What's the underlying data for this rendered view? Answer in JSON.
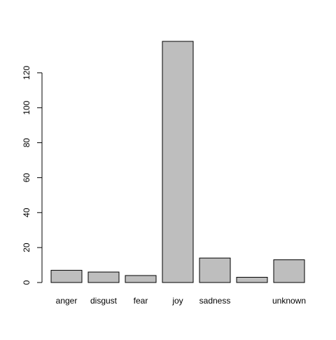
{
  "chart_data": {
    "type": "bar",
    "categories": [
      "anger",
      "disgust",
      "fear",
      "joy",
      "sadness",
      "",
      "unknown"
    ],
    "values": [
      7,
      6,
      4,
      138,
      14,
      3,
      13
    ],
    "title": "",
    "xlabel": "",
    "ylabel": "",
    "ylim": [
      0,
      138
    ],
    "yticks": [
      "0",
      "20",
      "40",
      "60",
      "80",
      "100",
      "120"
    ],
    "grid": false,
    "legend": "none",
    "colors": {
      "bar_fill": "#bebebe",
      "bar_stroke": "#000000",
      "axis": "#000000",
      "text": "#000000"
    }
  }
}
